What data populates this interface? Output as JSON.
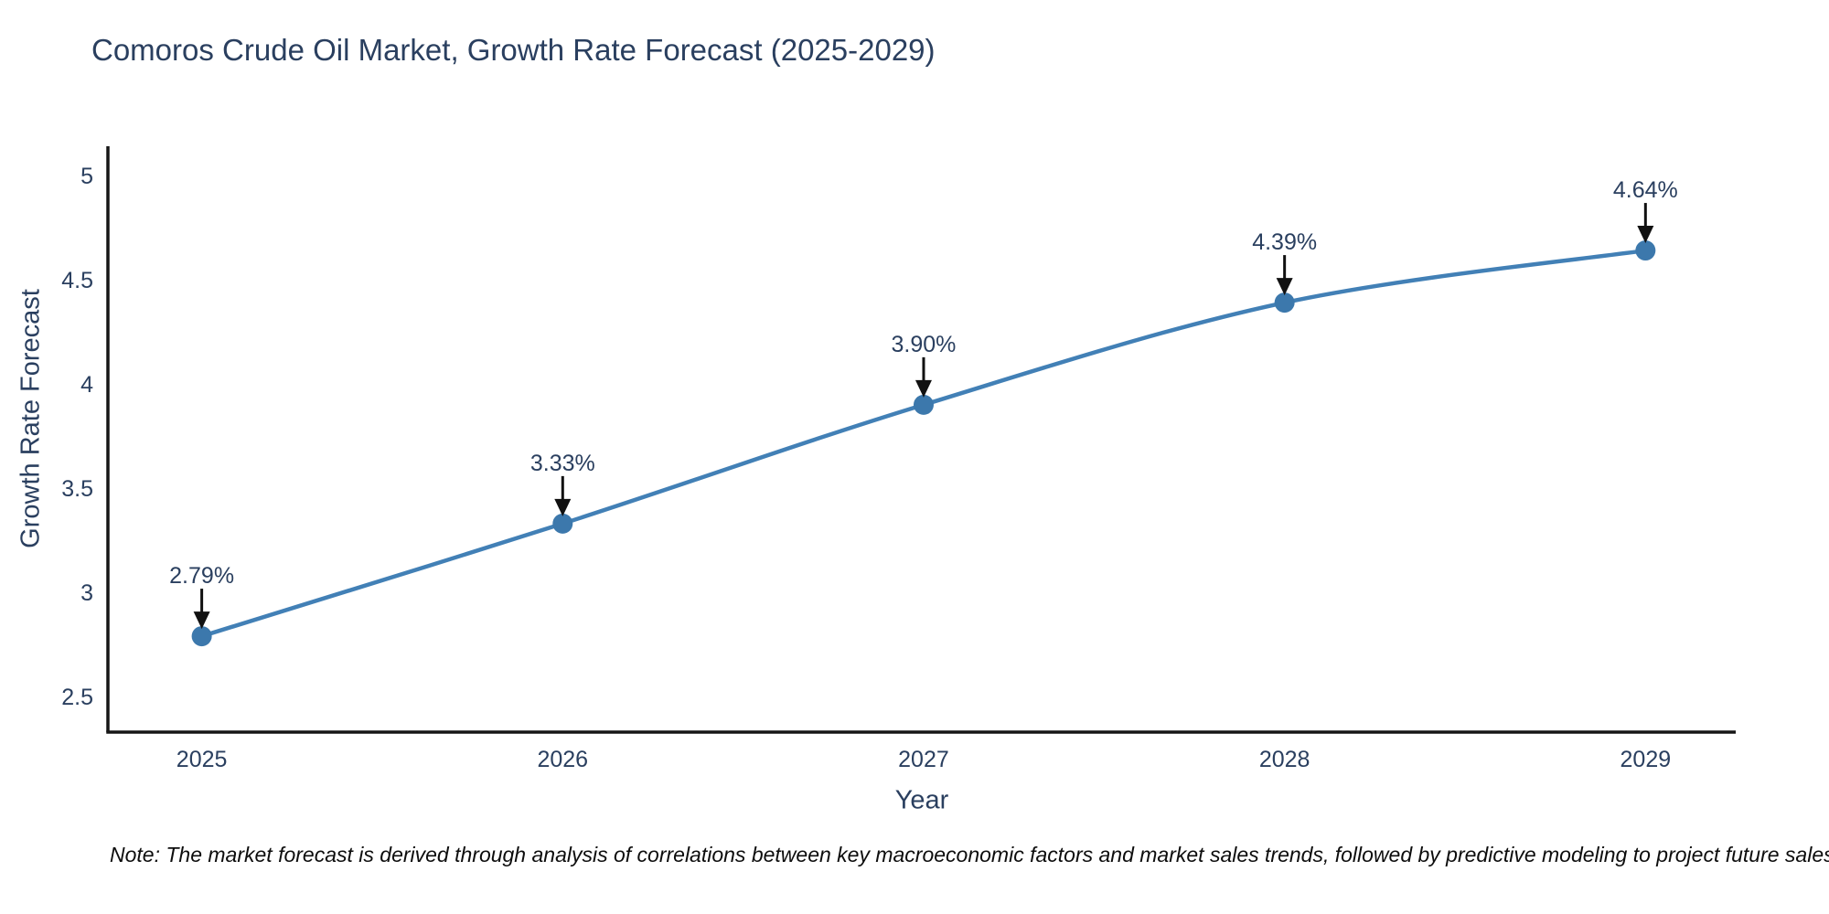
{
  "page": {
    "background": "#ffffff"
  },
  "chart_data": {
    "type": "line",
    "title": "Comoros Crude Oil Market, Growth Rate Forecast (2025-2029)",
    "xlabel": "Year",
    "ylabel": "Growth Rate Forecast",
    "x": [
      2025,
      2026,
      2027,
      2028,
      2029
    ],
    "values": [
      2.79,
      3.33,
      3.9,
      4.39,
      4.64
    ],
    "point_labels": [
      "2.79%",
      "3.33%",
      "3.90%",
      "4.39%",
      "4.64%"
    ],
    "xtick_labels": [
      "2025",
      "2026",
      "2027",
      "2028",
      "2029"
    ],
    "yticks": [
      2.5,
      3,
      3.5,
      4,
      4.5,
      5
    ],
    "ytick_labels": [
      "2.5",
      "3",
      "3.5",
      "4",
      "4.5",
      "5"
    ],
    "xlim": [
      2024.74,
      2029.25
    ],
    "ylim": [
      2.33,
      5.14
    ],
    "line_shape": "spline",
    "grid": "off",
    "legend": "none",
    "colors": {
      "line": "#4280b6",
      "marker": "#3c78ac",
      "axis": "#161616",
      "tick_text": "#2a3f5f",
      "annotation_text": "#2a3f5f",
      "arrow": "#111111"
    },
    "note": "Note: The market forecast is derived through analysis of correlations between key macroeconomic factors and market sales trends, followed by predictive modeling to project future sales"
  }
}
